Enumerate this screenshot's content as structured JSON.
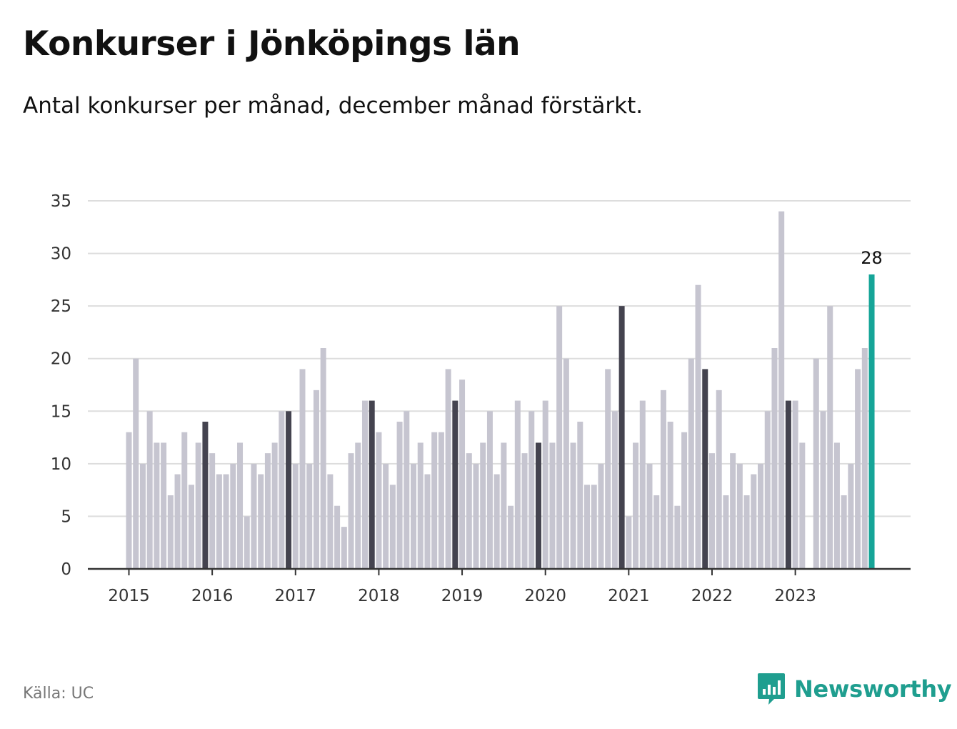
{
  "header": {
    "title": "Konkurser i Jönköpings län",
    "subtitle": "Antal konkurser per månad, december månad förstärkt."
  },
  "footer": {
    "source": "Källa: UC",
    "brand": "Newsworthy",
    "brand_icon": "bar-chart-speech-bubble-icon"
  },
  "colors": {
    "normal_bar": "#c6c5d0",
    "december_bar": "#44434f",
    "latest_bar": "#16a598",
    "grid": "#dddddd",
    "axis": "#333333",
    "brand": "#1f9e8f"
  },
  "chart_data": {
    "type": "bar",
    "x_tick_labels": [
      "2015",
      "2016",
      "2017",
      "2018",
      "2019",
      "2020",
      "2021",
      "2022",
      "2023"
    ],
    "y_ticks": [
      0,
      5,
      10,
      15,
      20,
      25,
      30,
      35
    ],
    "ylim": [
      0,
      35
    ],
    "grid": true,
    "highlight": "december",
    "latest_label": "28",
    "series": [
      {
        "values": [
          13,
          20,
          10,
          15,
          12,
          12,
          7,
          9,
          13,
          8,
          12,
          14,
          11,
          9,
          9,
          10,
          12,
          5,
          10,
          9,
          11,
          12,
          15,
          15,
          10,
          19,
          10,
          17,
          21,
          9,
          6,
          4,
          11,
          12,
          16,
          16,
          13,
          10,
          8,
          14,
          15,
          10,
          12,
          9,
          13,
          13,
          19,
          16,
          18,
          11,
          10,
          12,
          15,
          9,
          12,
          6,
          16,
          11,
          15,
          12,
          16,
          12,
          25,
          20,
          12,
          14,
          8,
          8,
          10,
          19,
          15,
          25,
          5,
          12,
          16,
          10,
          7,
          17,
          14,
          6,
          13,
          20,
          27,
          19,
          11,
          17,
          7,
          11,
          10,
          7,
          9,
          10,
          15,
          21,
          34,
          16,
          16,
          12,
          0,
          20,
          15,
          25,
          12,
          7,
          10,
          19,
          21,
          28
        ]
      }
    ]
  }
}
